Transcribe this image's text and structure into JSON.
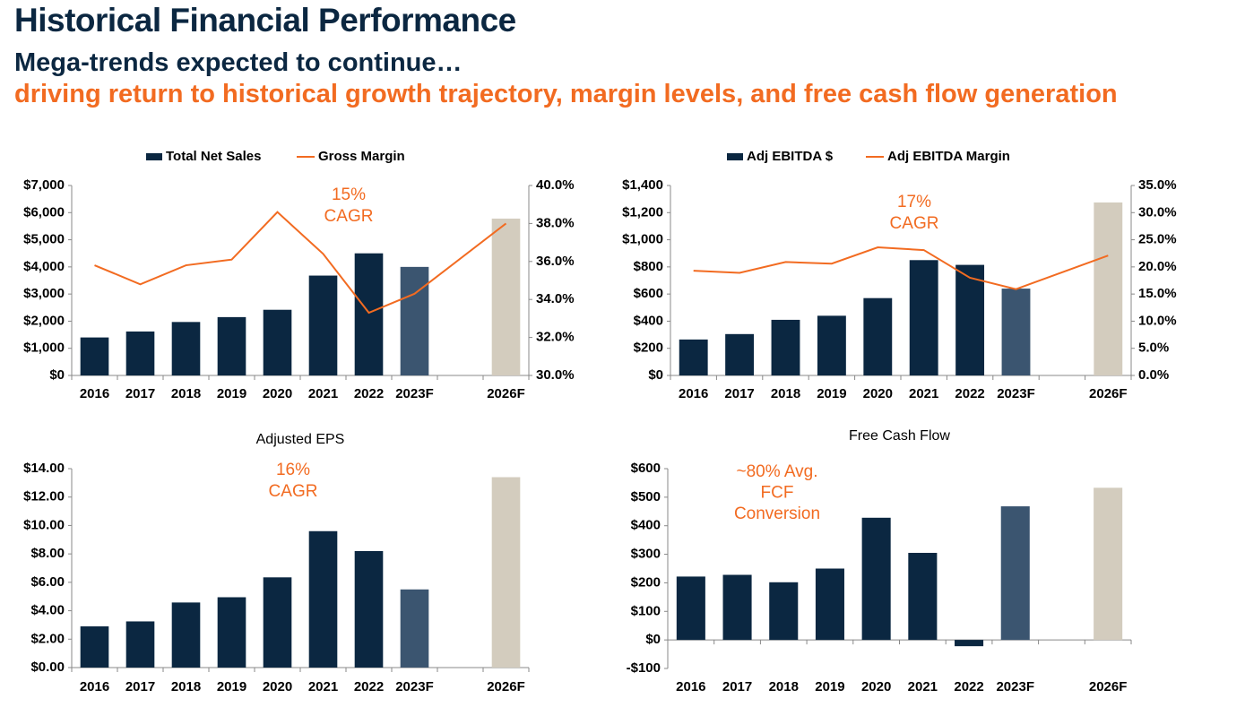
{
  "header": {
    "title": "Historical Financial Performance",
    "subtitle": "Mega-trends expected to continue…",
    "tagline": "driving return to historical growth trajectory, margin levels, and free cash flow generation"
  },
  "chart_data": [
    {
      "type": "combo",
      "categories": [
        "2016",
        "2017",
        "2018",
        "2019",
        "2020",
        "2021",
        "2022",
        "2023F",
        null,
        "2026F"
      ],
      "series": [
        {
          "name": "Total Net Sales",
          "color": "#0b2741",
          "colors": [
            "#0b2741",
            "#0b2741",
            "#0b2741",
            "#0b2741",
            "#0b2741",
            "#0b2741",
            "#0b2741",
            "#3b5570",
            null,
            "#d3ccbe"
          ],
          "values": [
            1400,
            1620,
            1970,
            2150,
            2420,
            3680,
            4500,
            4000,
            null,
            5780
          ]
        },
        {
          "name": "Gross Margin",
          "color": "#f26b21",
          "axis": "y2",
          "values": [
            35.8,
            34.8,
            35.8,
            36.1,
            38.6,
            36.4,
            33.3,
            34.3,
            null,
            38.0
          ]
        }
      ],
      "connect_gaps": true,
      "ylim": [
        0,
        7000
      ],
      "yticks": [
        {
          "value": 0,
          "label": "$0"
        },
        {
          "value": 1000,
          "label": "$1,000"
        },
        {
          "value": 2000,
          "label": "$2,000"
        },
        {
          "value": 3000,
          "label": "$3,000"
        },
        {
          "value": 4000,
          "label": "$4,000"
        },
        {
          "value": 5000,
          "label": "$5,000"
        },
        {
          "value": 6000,
          "label": "$6,000"
        },
        {
          "value": 7000,
          "label": "$7,000"
        }
      ],
      "y2lim": [
        30,
        40
      ],
      "y2ticks": [
        {
          "value": 30,
          "label": "30.0%"
        },
        {
          "value": 32,
          "label": "32.0%"
        },
        {
          "value": 34,
          "label": "34.0%"
        },
        {
          "value": 36,
          "label": "36.0%"
        },
        {
          "value": 38,
          "label": "38.0%"
        },
        {
          "value": 40,
          "label": "40.0%"
        }
      ],
      "annotation": [
        "15%",
        "CAGR"
      ]
    },
    {
      "type": "combo",
      "categories": [
        "2016",
        "2017",
        "2018",
        "2019",
        "2020",
        "2021",
        "2022",
        "2023F",
        null,
        "2026F"
      ],
      "series": [
        {
          "name": "Adj EBITDA $",
          "color": "#0b2741",
          "colors": [
            "#0b2741",
            "#0b2741",
            "#0b2741",
            "#0b2741",
            "#0b2741",
            "#0b2741",
            "#0b2741",
            "#3b5570",
            null,
            "#d3ccbe"
          ],
          "values": [
            265,
            305,
            410,
            440,
            570,
            850,
            815,
            640,
            null,
            1275
          ]
        },
        {
          "name": "Adj EBITDA Margin",
          "color": "#f26b21",
          "axis": "y2",
          "values": [
            19.3,
            18.9,
            20.9,
            20.6,
            23.6,
            23.1,
            18.0,
            15.9,
            null,
            22.1
          ]
        }
      ],
      "connect_gaps": true,
      "ylim": [
        0,
        1400
      ],
      "yticks": [
        {
          "value": 0,
          "label": "$0"
        },
        {
          "value": 200,
          "label": "$200"
        },
        {
          "value": 400,
          "label": "$400"
        },
        {
          "value": 600,
          "label": "$600"
        },
        {
          "value": 800,
          "label": "$800"
        },
        {
          "value": 1000,
          "label": "$1,000"
        },
        {
          "value": 1200,
          "label": "$1,200"
        },
        {
          "value": 1400,
          "label": "$1,400"
        }
      ],
      "y2lim": [
        0,
        35
      ],
      "y2ticks": [
        {
          "value": 0,
          "label": "0.0%"
        },
        {
          "value": 5,
          "label": "5.0%"
        },
        {
          "value": 10,
          "label": "10.0%"
        },
        {
          "value": 15,
          "label": "15.0%"
        },
        {
          "value": 20,
          "label": "20.0%"
        },
        {
          "value": 25,
          "label": "25.0%"
        },
        {
          "value": 30,
          "label": "30.0%"
        },
        {
          "value": 35,
          "label": "35.0%"
        }
      ],
      "annotation": [
        "17%",
        "CAGR"
      ]
    },
    {
      "type": "bar",
      "title": "Adjusted EPS",
      "categories": [
        "2016",
        "2017",
        "2018",
        "2019",
        "2020",
        "2021",
        "2022",
        "2023F",
        null,
        "2026F"
      ],
      "values": [
        2.9,
        3.25,
        4.58,
        4.95,
        6.35,
        9.6,
        8.2,
        5.5,
        null,
        13.4
      ],
      "colors": [
        "#0b2741",
        "#0b2741",
        "#0b2741",
        "#0b2741",
        "#0b2741",
        "#0b2741",
        "#0b2741",
        "#3b5570",
        null,
        "#d3ccbe"
      ],
      "ylim": [
        0,
        14
      ],
      "yticks": [
        {
          "value": 0,
          "label": "$0.00"
        },
        {
          "value": 2,
          "label": "$2.00"
        },
        {
          "value": 4,
          "label": "$4.00"
        },
        {
          "value": 6,
          "label": "$6.00"
        },
        {
          "value": 8,
          "label": "$8.00"
        },
        {
          "value": 10,
          "label": "$10.00"
        },
        {
          "value": 12,
          "label": "$12.00"
        },
        {
          "value": 14,
          "label": "$14.00"
        }
      ],
      "annotation": [
        "16%",
        "CAGR"
      ]
    },
    {
      "type": "bar",
      "title": "Free Cash Flow",
      "categories": [
        "2016",
        "2017",
        "2018",
        "2019",
        "2020",
        "2021",
        "2022",
        "2023F",
        null,
        "2026F"
      ],
      "values": [
        222,
        228,
        202,
        250,
        428,
        305,
        -22,
        468,
        null,
        533
      ],
      "colors": [
        "#0b2741",
        "#0b2741",
        "#0b2741",
        "#0b2741",
        "#0b2741",
        "#0b2741",
        "#0b2741",
        "#3b5570",
        null,
        "#d3ccbe"
      ],
      "ylim": [
        -100,
        600
      ],
      "yticks": [
        {
          "value": -100,
          "label": "-$100"
        },
        {
          "value": 0,
          "label": "$0"
        },
        {
          "value": 100,
          "label": "$100"
        },
        {
          "value": 200,
          "label": "$200"
        },
        {
          "value": 300,
          "label": "$300"
        },
        {
          "value": 400,
          "label": "$400"
        },
        {
          "value": 500,
          "label": "$500"
        },
        {
          "value": 600,
          "label": "$600"
        }
      ],
      "annotation": [
        "~80% Avg.",
        "FCF",
        "Conversion"
      ]
    }
  ]
}
